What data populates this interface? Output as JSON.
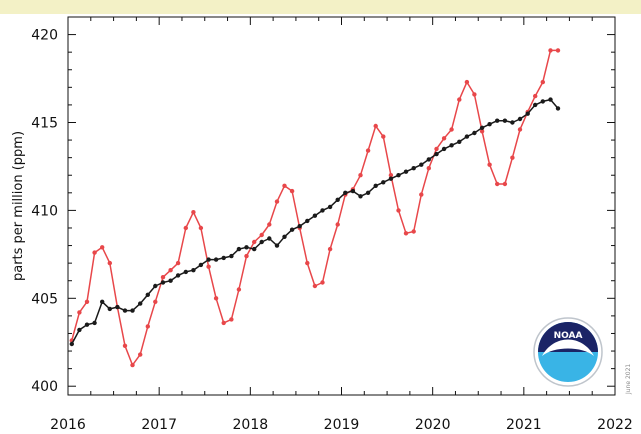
{
  "header_band": {
    "text": "",
    "color": "#f3f1c6"
  },
  "colors": {
    "monthly": "#e8474a",
    "trend": "#1a1a1a",
    "frame": "#111111",
    "logo_blue": "#1b4fa0",
    "logo_navy": "#1b2466",
    "logo_cyan": "#39b4e6"
  },
  "logo": {
    "name": "noaa-logo",
    "text": "NOAA"
  },
  "credit_text": "June 2021",
  "chart_data": {
    "type": "line",
    "title": "",
    "xlabel": "",
    "ylabel": "parts per million (ppm)",
    "xlim": [
      2016,
      2022
    ],
    "ylim": [
      399.5,
      421
    ],
    "xticks": [
      2016,
      2017,
      2018,
      2019,
      2020,
      2021,
      2022
    ],
    "yticks": [
      400,
      405,
      410,
      415,
      420
    ],
    "grid": false,
    "series": [
      {
        "key": "monthly",
        "color": "#e8474a",
        "marker": "dot",
        "x": [
          2016.042,
          2016.125,
          2016.208,
          2016.292,
          2016.375,
          2016.458,
          2016.542,
          2016.625,
          2016.708,
          2016.792,
          2016.875,
          2016.958,
          2017.042,
          2017.125,
          2017.208,
          2017.292,
          2017.375,
          2017.458,
          2017.542,
          2017.625,
          2017.708,
          2017.792,
          2017.875,
          2017.958,
          2018.042,
          2018.125,
          2018.208,
          2018.292,
          2018.375,
          2018.458,
          2018.542,
          2018.625,
          2018.708,
          2018.792,
          2018.875,
          2018.958,
          2019.042,
          2019.125,
          2019.208,
          2019.292,
          2019.375,
          2019.458,
          2019.542,
          2019.625,
          2019.708,
          2019.792,
          2019.875,
          2019.958,
          2020.042,
          2020.125,
          2020.208,
          2020.292,
          2020.375,
          2020.458,
          2020.542,
          2020.625,
          2020.708,
          2020.792,
          2020.875,
          2020.958,
          2021.042,
          2021.125,
          2021.208,
          2021.292,
          2021.375
        ],
        "y": [
          402.6,
          404.2,
          404.8,
          407.6,
          407.9,
          407.0,
          404.5,
          402.3,
          401.2,
          401.8,
          403.4,
          404.8,
          406.2,
          406.6,
          407.0,
          409.0,
          409.9,
          409.0,
          406.8,
          405.0,
          403.6,
          403.8,
          405.5,
          407.4,
          408.2,
          408.6,
          409.2,
          410.5,
          411.4,
          411.1,
          409.0,
          407.0,
          405.7,
          405.9,
          407.8,
          409.2,
          410.9,
          411.2,
          412.0,
          413.4,
          414.8,
          414.2,
          412.0,
          410.0,
          408.7,
          408.8,
          410.9,
          412.4,
          413.5,
          414.1,
          414.6,
          416.3,
          417.3,
          416.6,
          414.5,
          412.6,
          411.5,
          411.5,
          413.0,
          414.6,
          415.6,
          416.5,
          417.3,
          419.1,
          419.1
        ]
      },
      {
        "key": "trend",
        "color": "#1a1a1a",
        "marker": "dot",
        "x": [
          2016.042,
          2016.125,
          2016.208,
          2016.292,
          2016.375,
          2016.458,
          2016.542,
          2016.625,
          2016.708,
          2016.792,
          2016.875,
          2016.958,
          2017.042,
          2017.125,
          2017.208,
          2017.292,
          2017.375,
          2017.458,
          2017.542,
          2017.625,
          2017.708,
          2017.792,
          2017.875,
          2017.958,
          2018.042,
          2018.125,
          2018.208,
          2018.292,
          2018.375,
          2018.458,
          2018.542,
          2018.625,
          2018.708,
          2018.792,
          2018.875,
          2018.958,
          2019.042,
          2019.125,
          2019.208,
          2019.292,
          2019.375,
          2019.458,
          2019.542,
          2019.625,
          2019.708,
          2019.792,
          2019.875,
          2019.958,
          2020.042,
          2020.125,
          2020.208,
          2020.292,
          2020.375,
          2020.458,
          2020.542,
          2020.625,
          2020.708,
          2020.792,
          2020.875,
          2020.958,
          2021.042,
          2021.125,
          2021.208,
          2021.292,
          2021.375
        ],
        "y": [
          402.4,
          403.2,
          403.5,
          403.6,
          404.8,
          404.4,
          404.5,
          404.3,
          404.3,
          404.7,
          405.2,
          405.7,
          405.9,
          406.0,
          406.3,
          406.5,
          406.6,
          406.9,
          407.2,
          407.2,
          407.3,
          407.4,
          407.8,
          407.9,
          407.8,
          408.2,
          408.4,
          408.0,
          408.5,
          408.9,
          409.1,
          409.4,
          409.7,
          410.0,
          410.2,
          410.6,
          411.0,
          411.1,
          410.8,
          411.0,
          411.4,
          411.6,
          411.8,
          412.0,
          412.2,
          412.4,
          412.6,
          412.9,
          413.2,
          413.5,
          413.7,
          413.9,
          414.2,
          414.4,
          414.7,
          414.9,
          415.1,
          415.1,
          415.0,
          415.2,
          415.5,
          416.0,
          416.2,
          416.3,
          415.8
        ]
      }
    ]
  }
}
